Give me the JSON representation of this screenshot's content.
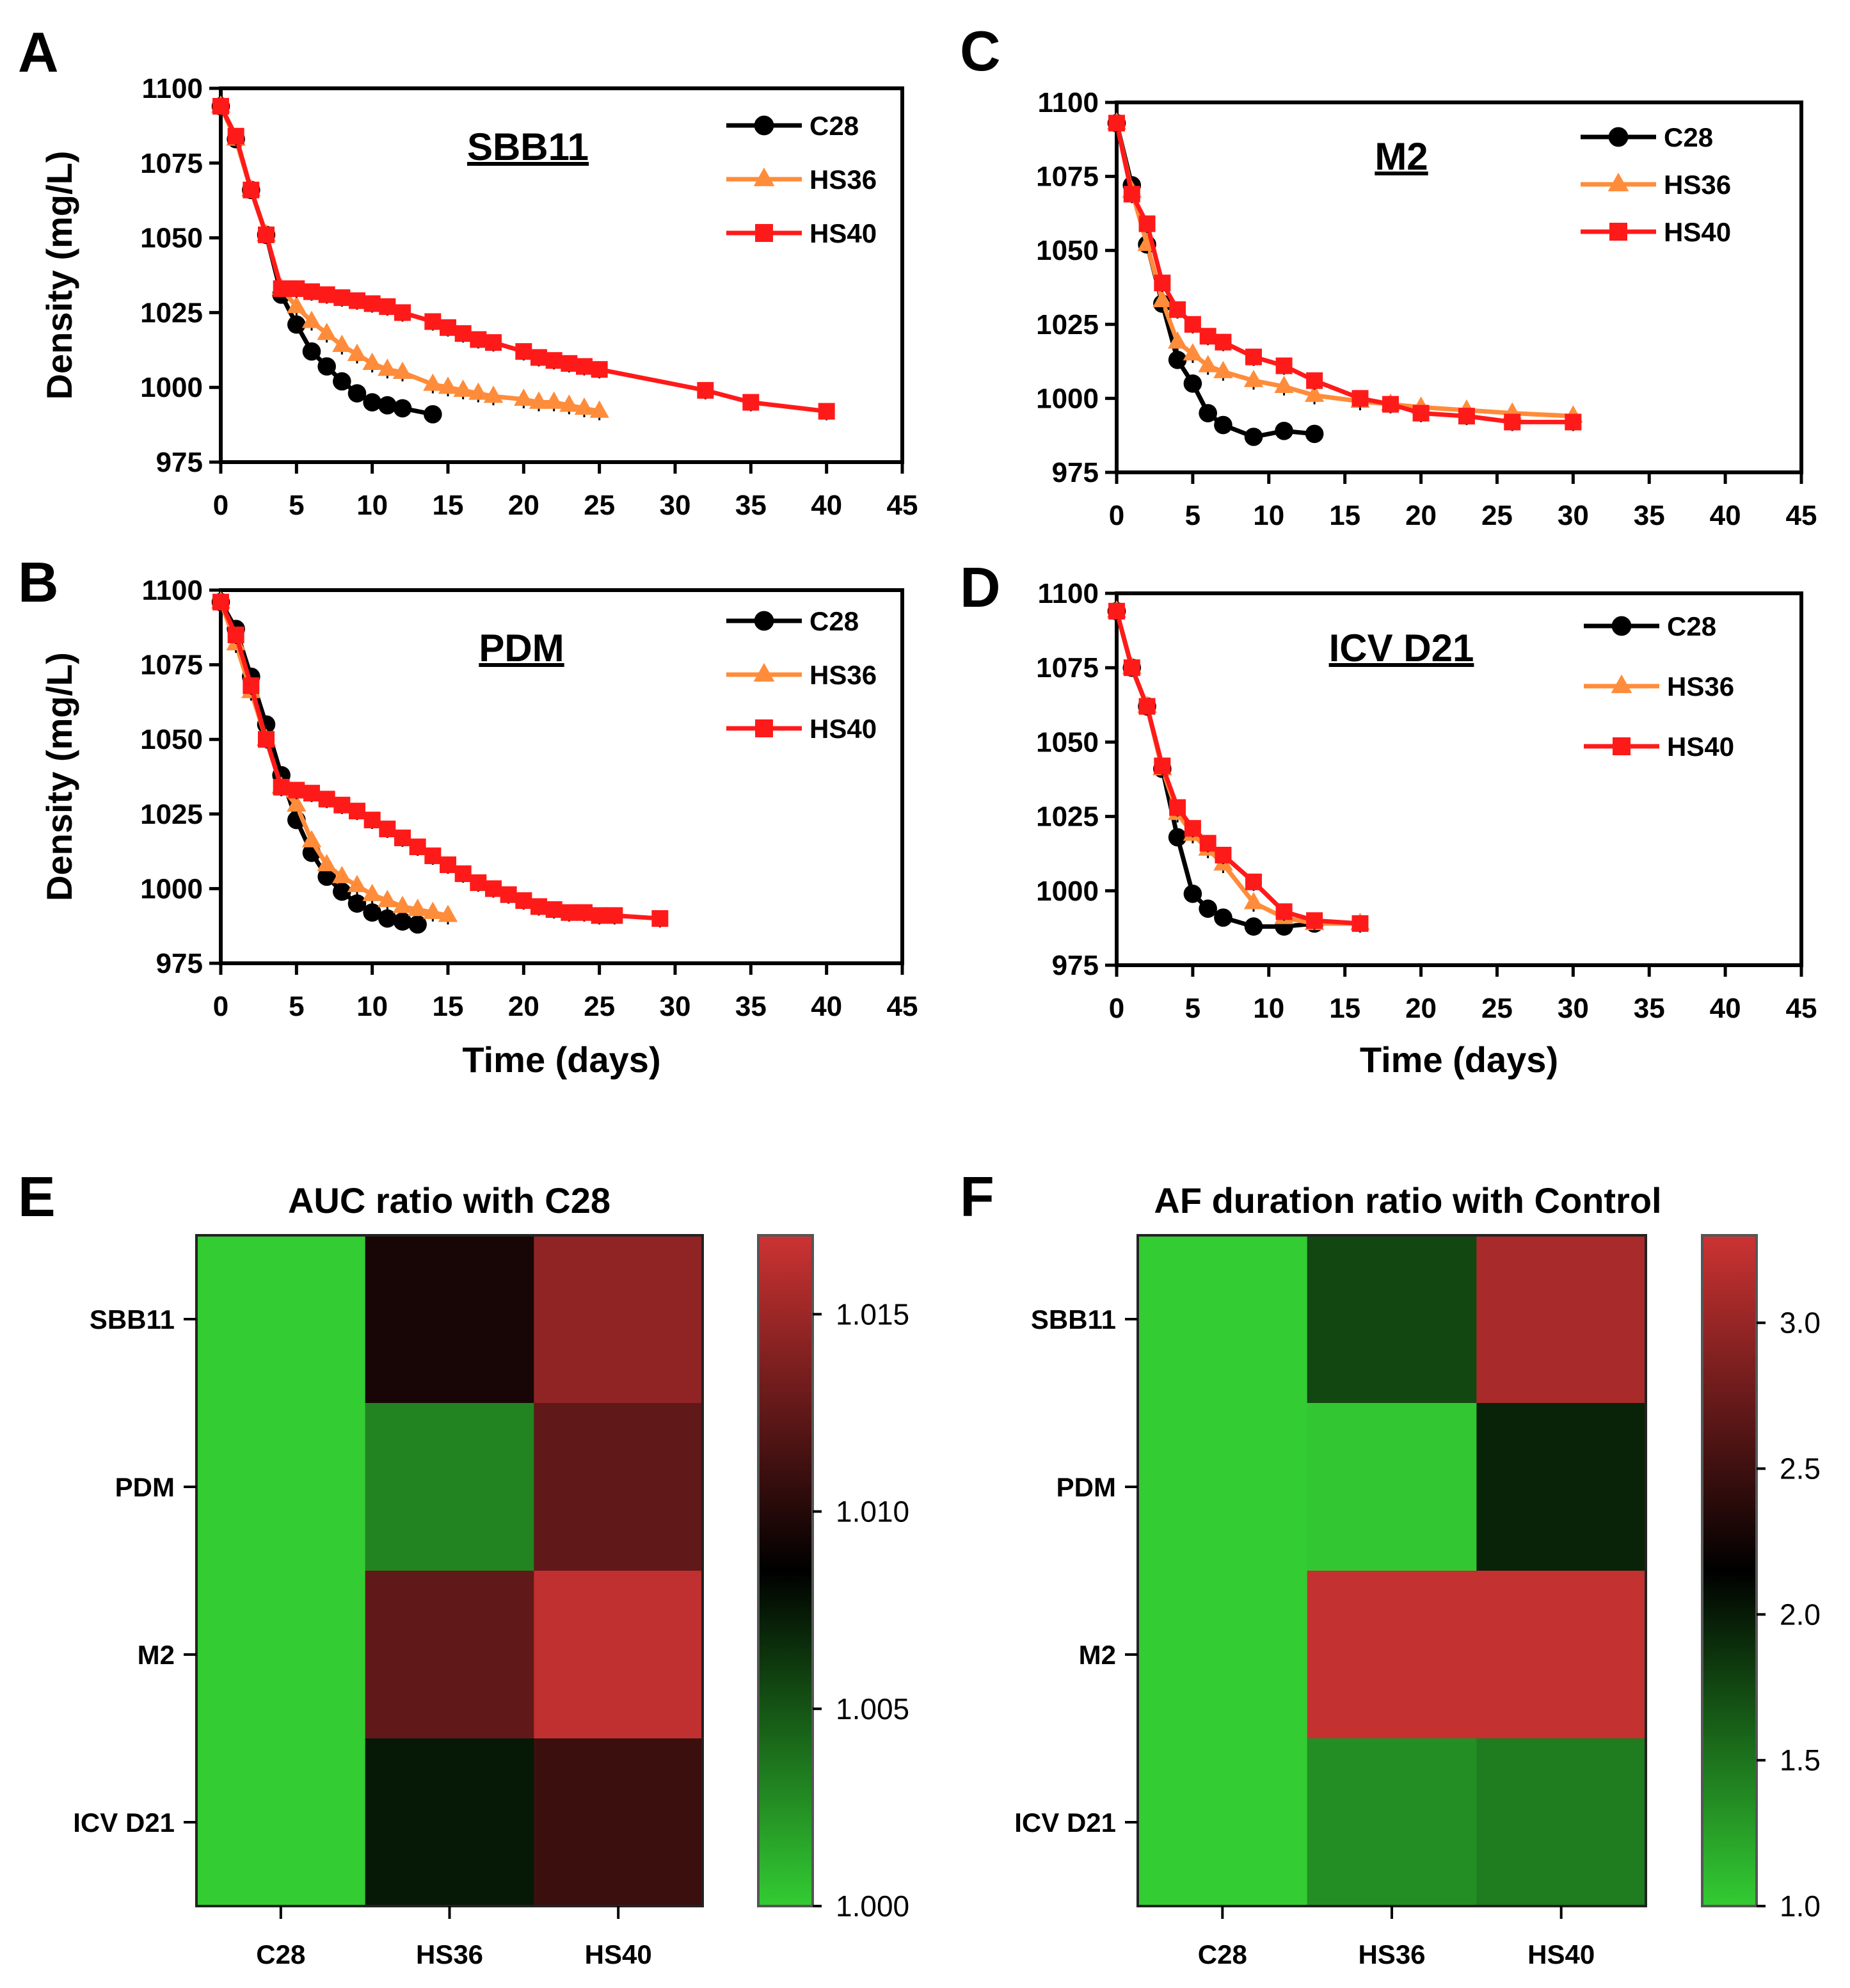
{
  "chart_data": [
    {
      "panel": "A",
      "type": "line",
      "title": "SBB11",
      "xlabel": "",
      "ylabel": "Density (mg/L)",
      "xlim": [
        0,
        45
      ],
      "ylim": [
        975,
        1100
      ],
      "xticks": [
        "0",
        "5",
        "10",
        "15",
        "20",
        "25",
        "30",
        "35",
        "40",
        "45"
      ],
      "yticks": [
        "975",
        "1000",
        "1025",
        "1050",
        "1075",
        "1100"
      ],
      "series": [
        {
          "name": "C28",
          "color": "#000000",
          "marker": "circle",
          "x": [
            0,
            1,
            2,
            3,
            4,
            5,
            6,
            7,
            8,
            9,
            10,
            11,
            12,
            14
          ],
          "y": [
            1094,
            1083,
            1066,
            1051,
            1031,
            1021,
            1012,
            1007,
            1002,
            998,
            995,
            994,
            993,
            991
          ]
        },
        {
          "name": "HS36",
          "color": "#ff8c3a",
          "marker": "triangle",
          "x": [
            0,
            1,
            2,
            3,
            4,
            5,
            6,
            7,
            8,
            9,
            10,
            11,
            12,
            14,
            15,
            16,
            17,
            18,
            20,
            21,
            22,
            23,
            24,
            25
          ],
          "y": [
            1094,
            1083,
            1066,
            1051,
            1033,
            1027,
            1022,
            1018,
            1014,
            1011,
            1008,
            1006,
            1005,
            1001,
            1000,
            999,
            998,
            997,
            996,
            995,
            995,
            994,
            993,
            992
          ]
        },
        {
          "name": "HS40",
          "color": "#ff1a1a",
          "marker": "square",
          "x": [
            0,
            1,
            2,
            3,
            4,
            5,
            6,
            7,
            8,
            9,
            10,
            11,
            12,
            14,
            15,
            16,
            17,
            18,
            20,
            21,
            22,
            23,
            24,
            25,
            32,
            35,
            40
          ],
          "y": [
            1094,
            1084,
            1066,
            1051,
            1033,
            1033,
            1032,
            1031,
            1030,
            1029,
            1028,
            1027,
            1025,
            1022,
            1020,
            1018,
            1016,
            1015,
            1012,
            1010,
            1009,
            1008,
            1007,
            1006,
            999,
            995,
            992
          ]
        }
      ]
    },
    {
      "panel": "B",
      "type": "line",
      "title": "PDM",
      "xlabel": "Time (days)",
      "ylabel": "Density (mg/L)",
      "xlim": [
        0,
        45
      ],
      "ylim": [
        975,
        1100
      ],
      "xticks": [
        "0",
        "5",
        "10",
        "15",
        "20",
        "25",
        "30",
        "35",
        "40",
        "45"
      ],
      "yticks": [
        "975",
        "1000",
        "1025",
        "1050",
        "1075",
        "1100"
      ],
      "series": [
        {
          "name": "C28",
          "color": "#000000",
          "marker": "circle",
          "x": [
            0,
            1,
            2,
            3,
            4,
            5,
            6,
            7,
            8,
            9,
            10,
            11,
            12,
            13
          ],
          "y": [
            1096,
            1087,
            1071,
            1055,
            1038,
            1023,
            1012,
            1004,
            999,
            995,
            992,
            990,
            989,
            988
          ]
        },
        {
          "name": "HS36",
          "color": "#ff8c3a",
          "marker": "triangle",
          "x": [
            0,
            1,
            2,
            3,
            4,
            5,
            6,
            7,
            8,
            9,
            10,
            11,
            12,
            13,
            14,
            15
          ],
          "y": [
            1096,
            1082,
            1066,
            1050,
            1034,
            1028,
            1016,
            1008,
            1004,
            1001,
            998,
            996,
            994,
            993,
            992,
            991
          ]
        },
        {
          "name": "HS40",
          "color": "#ff1a1a",
          "marker": "square",
          "x": [
            0,
            1,
            2,
            3,
            4,
            5,
            6,
            7,
            8,
            9,
            10,
            11,
            12,
            13,
            14,
            15,
            16,
            17,
            18,
            19,
            20,
            21,
            22,
            23,
            24,
            25,
            26,
            29
          ],
          "y": [
            1096,
            1085,
            1068,
            1050,
            1034,
            1033,
            1032,
            1030,
            1028,
            1026,
            1023,
            1020,
            1017,
            1014,
            1011,
            1008,
            1005,
            1002,
            1000,
            998,
            996,
            994,
            993,
            992,
            992,
            991,
            991,
            990
          ]
        }
      ]
    },
    {
      "panel": "C",
      "type": "line",
      "title": "M2",
      "xlabel": "",
      "ylabel": "",
      "xlim": [
        0,
        45
      ],
      "ylim": [
        975,
        1100
      ],
      "xticks": [
        "0",
        "5",
        "10",
        "15",
        "20",
        "25",
        "30",
        "35",
        "40",
        "45"
      ],
      "yticks": [
        "975",
        "1000",
        "1025",
        "1050",
        "1075",
        "1100"
      ],
      "series": [
        {
          "name": "C28",
          "color": "#000000",
          "marker": "circle",
          "x": [
            0,
            1,
            2,
            3,
            4,
            5,
            6,
            7,
            9,
            11,
            13
          ],
          "y": [
            1093,
            1072,
            1052,
            1032,
            1013,
            1005,
            995,
            991,
            987,
            989,
            988
          ]
        },
        {
          "name": "HS36",
          "color": "#ff8c3a",
          "marker": "triangle",
          "x": [
            0,
            1,
            2,
            3,
            4,
            5,
            6,
            7,
            9,
            11,
            13,
            16,
            18,
            20,
            23,
            26,
            30
          ],
          "y": [
            1093,
            1070,
            1052,
            1033,
            1019,
            1015,
            1011,
            1009,
            1006,
            1004,
            1001,
            999,
            998,
            997,
            996,
            995,
            994
          ]
        },
        {
          "name": "HS40",
          "color": "#ff1a1a",
          "marker": "square",
          "x": [
            0,
            1,
            2,
            3,
            4,
            5,
            6,
            7,
            9,
            11,
            13,
            16,
            18,
            20,
            23,
            26,
            30
          ],
          "y": [
            1093,
            1069,
            1059,
            1039,
            1030,
            1025,
            1021,
            1019,
            1014,
            1011,
            1006,
            1000,
            998,
            995,
            994,
            992,
            992
          ]
        }
      ]
    },
    {
      "panel": "D",
      "type": "line",
      "title": "ICV D21",
      "xlabel": "Time (days)",
      "ylabel": "",
      "xlim": [
        0,
        45
      ],
      "ylim": [
        975,
        1100
      ],
      "xticks": [
        "0",
        "5",
        "10",
        "15",
        "20",
        "25",
        "30",
        "35",
        "40",
        "45"
      ],
      "yticks": [
        "975",
        "1000",
        "1025",
        "1050",
        "1075",
        "1100"
      ],
      "series": [
        {
          "name": "C28",
          "color": "#000000",
          "marker": "circle",
          "x": [
            0,
            1,
            2,
            3,
            4,
            5,
            6,
            7,
            9,
            11,
            13
          ],
          "y": [
            1094,
            1075,
            1062,
            1041,
            1018,
            999,
            994,
            991,
            988,
            988,
            989
          ]
        },
        {
          "name": "HS36",
          "color": "#ff8c3a",
          "marker": "triangle",
          "x": [
            0,
            1,
            2,
            3,
            4,
            5,
            6,
            7,
            9,
            11,
            13,
            16
          ],
          "y": [
            1094,
            1075,
            1062,
            1041,
            1026,
            1019,
            1014,
            1009,
            996,
            991,
            989,
            989
          ]
        },
        {
          "name": "HS40",
          "color": "#ff1a1a",
          "marker": "square",
          "x": [
            0,
            1,
            2,
            3,
            4,
            5,
            6,
            7,
            9,
            11,
            13,
            16
          ],
          "y": [
            1094,
            1075,
            1062,
            1042,
            1028,
            1021,
            1016,
            1012,
            1003,
            993,
            990,
            989
          ]
        }
      ]
    },
    {
      "panel": "E",
      "type": "heatmap",
      "title": "AUC ratio with C28",
      "rows": [
        "SBB11",
        "PDM",
        "M2",
        "ICV D21"
      ],
      "columns": [
        "C28",
        "HS36",
        "HS40"
      ],
      "values": [
        [
          1.0,
          1.0095,
          1.0145
        ],
        [
          1.0,
          1.003,
          1.0125
        ],
        [
          1.0,
          1.0125,
          1.0165
        ],
        [
          1.0,
          1.0075,
          1.011
        ]
      ],
      "colorbar": {
        "min": 1.0,
        "max": 1.017,
        "ticks": [
          "1.000",
          "1.005",
          "1.010",
          "1.015"
        ],
        "tick_values": [
          1.0,
          1.005,
          1.01,
          1.015
        ]
      },
      "colors": {
        "low": "#33cc33",
        "mid": "#000000",
        "high": "#cc3333"
      }
    },
    {
      "panel": "F",
      "type": "heatmap",
      "title": "AF duration ratio with Control",
      "rows": [
        "SBB11",
        "PDM",
        "M2",
        "ICV D21"
      ],
      "columns": [
        "C28",
        "HS36",
        "HS40"
      ],
      "values": [
        [
          1.0,
          1.75,
          3.1
        ],
        [
          1.0,
          1.03,
          1.95
        ],
        [
          1.0,
          3.25,
          3.25
        ],
        [
          1.0,
          1.35,
          1.45
        ]
      ],
      "colorbar": {
        "min": 1.0,
        "max": 3.3,
        "ticks": [
          "1.0",
          "1.5",
          "2.0",
          "2.5",
          "3.0"
        ],
        "tick_values": [
          1.0,
          1.5,
          2.0,
          2.5,
          3.0
        ]
      },
      "colors": {
        "low": "#33cc33",
        "mid": "#000000",
        "high": "#cc3333"
      }
    }
  ]
}
